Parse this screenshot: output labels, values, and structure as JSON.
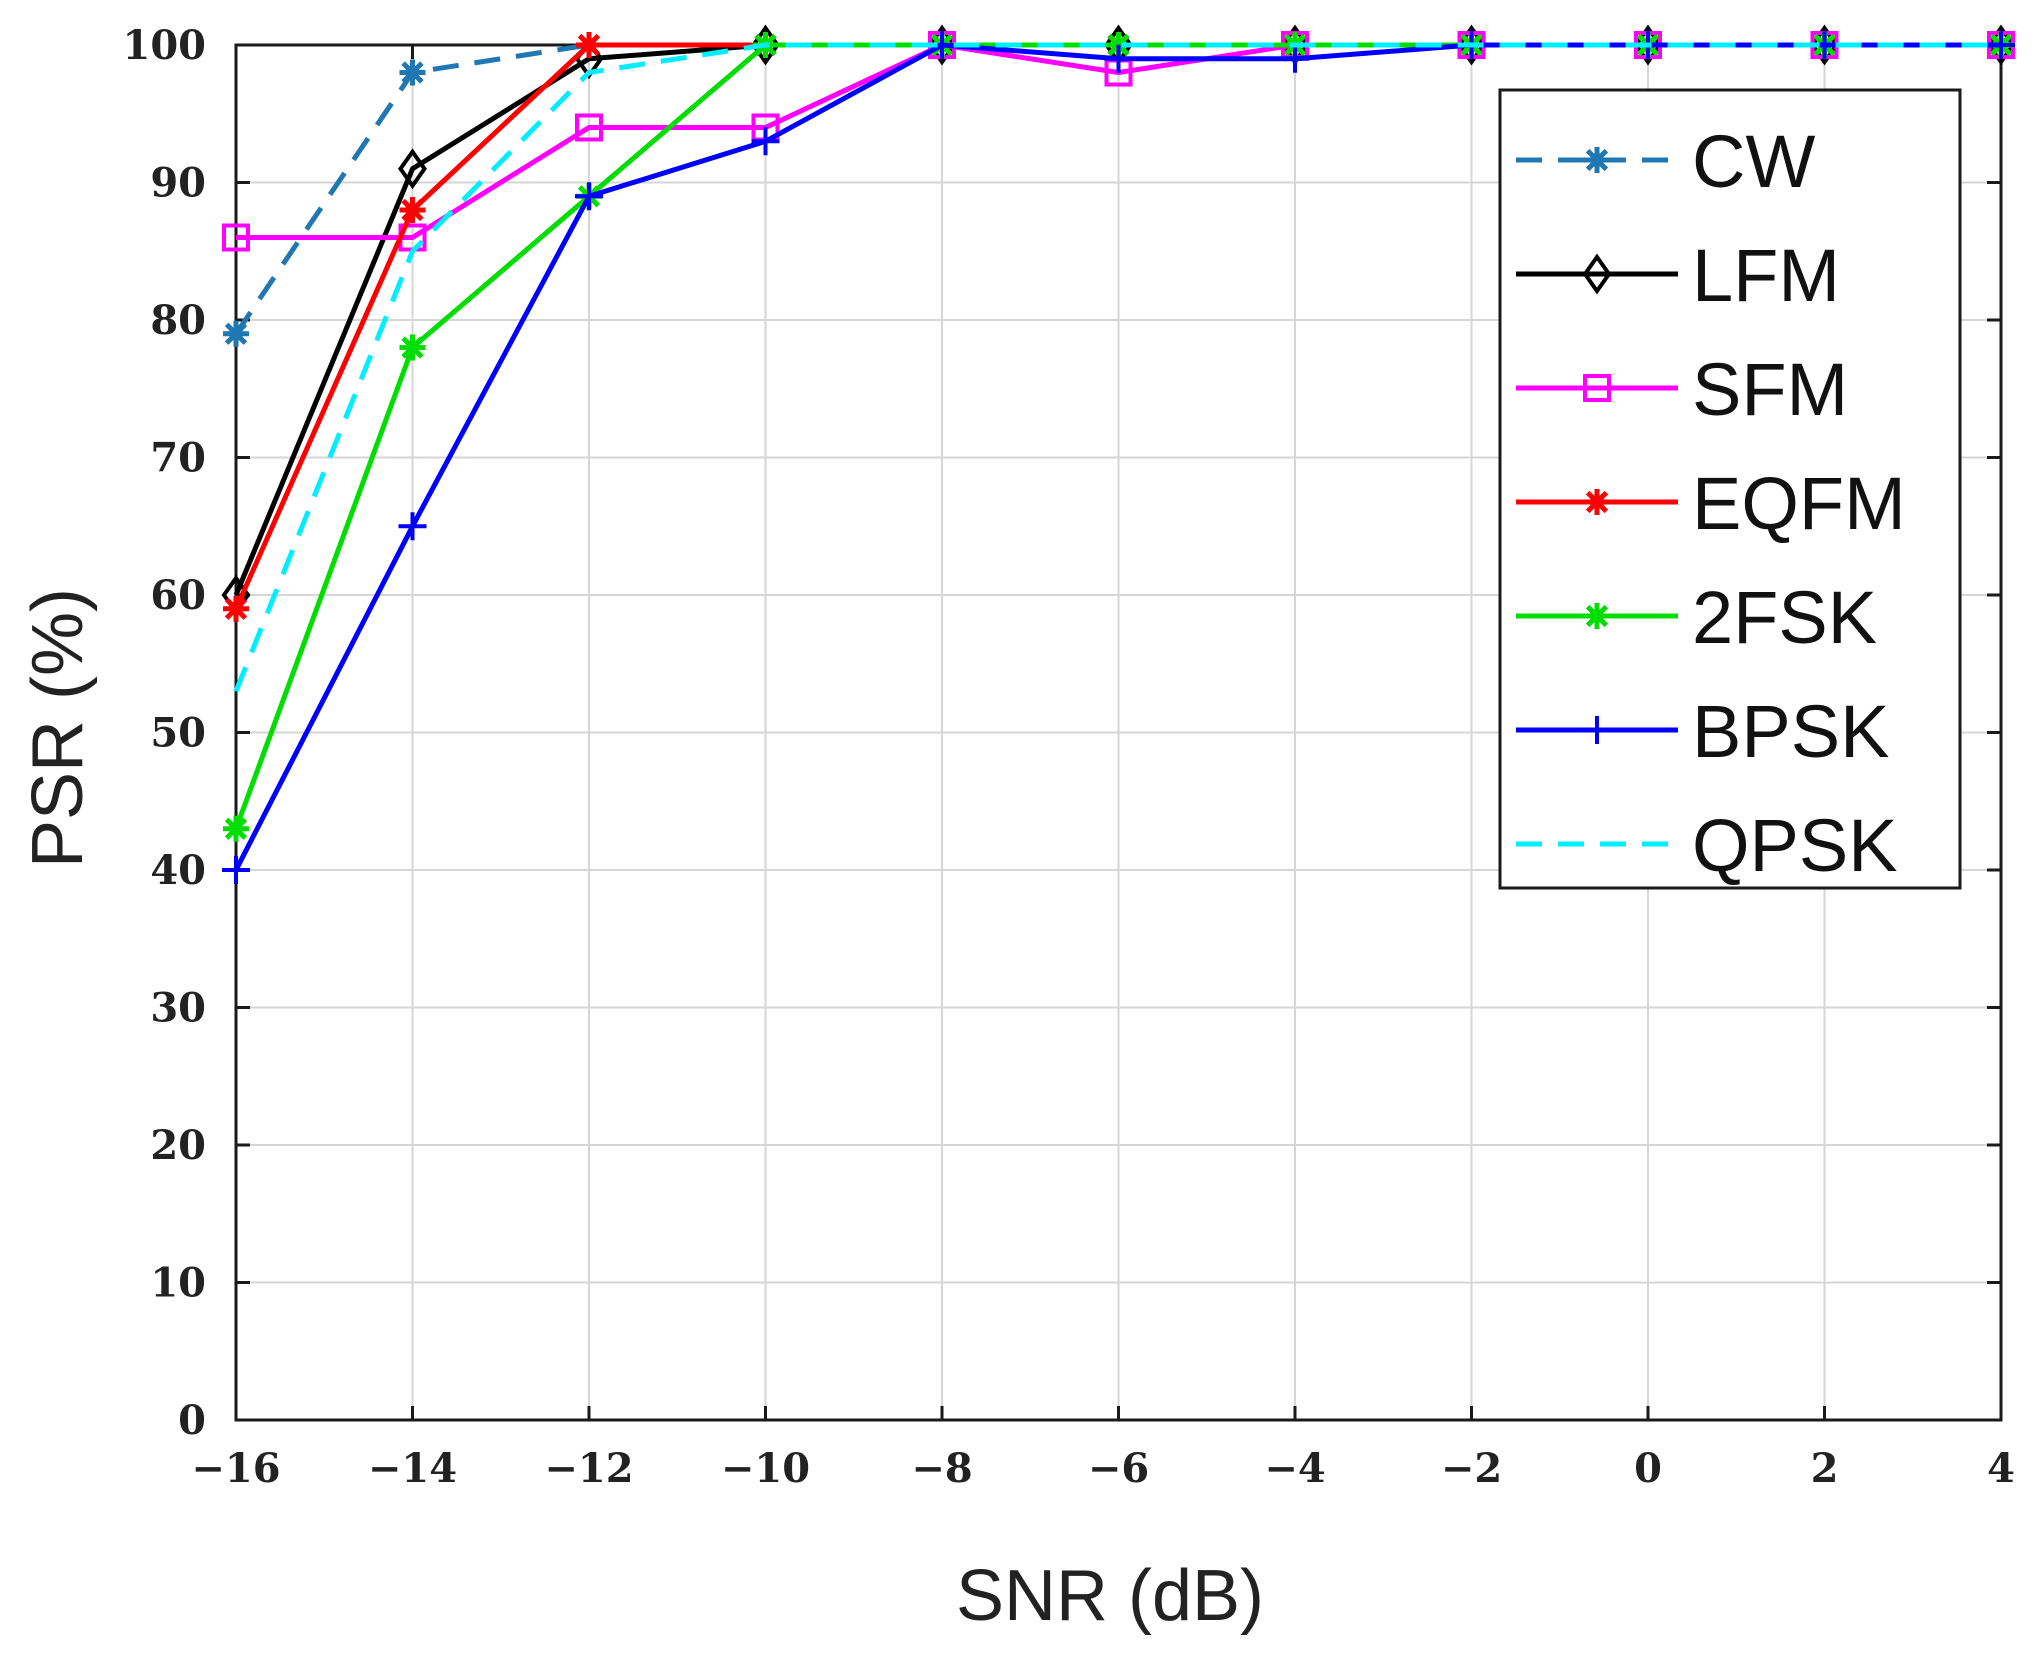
{
  "chart_data": {
    "type": "line",
    "title": "",
    "xlabel": "SNR (dB)",
    "ylabel": "PSR (%)",
    "xlim": [
      -16,
      4
    ],
    "ylim": [
      0,
      100
    ],
    "grid": true,
    "legend_position": "top-right",
    "x": [
      -16,
      -14,
      -12,
      -10,
      -8,
      -6,
      -4,
      -2,
      0,
      2,
      4
    ],
    "xticks": [
      -16,
      -14,
      -12,
      -10,
      -8,
      -6,
      -4,
      -2,
      0,
      2,
      4
    ],
    "xtick_labels": [
      "−16",
      "−14",
      "−12",
      "−10",
      "−8",
      "−6",
      "−4",
      "−2",
      "0",
      "2",
      "4"
    ],
    "yticks": [
      0,
      10,
      20,
      30,
      40,
      50,
      60,
      70,
      80,
      90,
      100
    ],
    "ytick_labels": [
      "0",
      "10",
      "20",
      "30",
      "40",
      "50",
      "60",
      "70",
      "80",
      "90",
      "100"
    ],
    "series": [
      {
        "name": "CW",
        "color": "#1f77b4",
        "dash": "dashed",
        "marker": "asterisk",
        "values": [
          79,
          98,
          100,
          100,
          100,
          100,
          100,
          100,
          100,
          100,
          100
        ]
      },
      {
        "name": "LFM",
        "color": "#000000",
        "dash": "solid",
        "marker": "diamond",
        "values": [
          60,
          91,
          99,
          100,
          100,
          100,
          100,
          100,
          100,
          100,
          100
        ]
      },
      {
        "name": "SFM",
        "color": "#ff00ff",
        "dash": "solid",
        "marker": "square",
        "values": [
          86,
          86,
          94,
          94,
          100,
          98,
          100,
          100,
          100,
          100,
          100
        ]
      },
      {
        "name": "EQFM",
        "color": "#ff0000",
        "dash": "solid",
        "marker": "asterisk",
        "values": [
          59,
          88,
          100,
          100,
          100,
          100,
          100,
          100,
          100,
          100,
          100
        ]
      },
      {
        "name": "2FSK",
        "color": "#00dd00",
        "dash": "solid",
        "marker": "asterisk",
        "values": [
          43,
          78,
          89,
          100,
          100,
          100,
          100,
          100,
          100,
          100,
          100
        ]
      },
      {
        "name": "BPSK",
        "color": "#0000ff",
        "dash": "solid",
        "marker": "plus",
        "values": [
          40,
          65,
          89,
          93,
          100,
          99,
          99,
          100,
          100,
          100,
          100
        ]
      },
      {
        "name": "QPSK",
        "color": "#00eeff",
        "dash": "dashed",
        "marker": "none",
        "values": [
          53,
          85,
          98,
          100,
          100,
          100,
          100,
          100,
          100,
          100,
          100
        ]
      }
    ]
  }
}
